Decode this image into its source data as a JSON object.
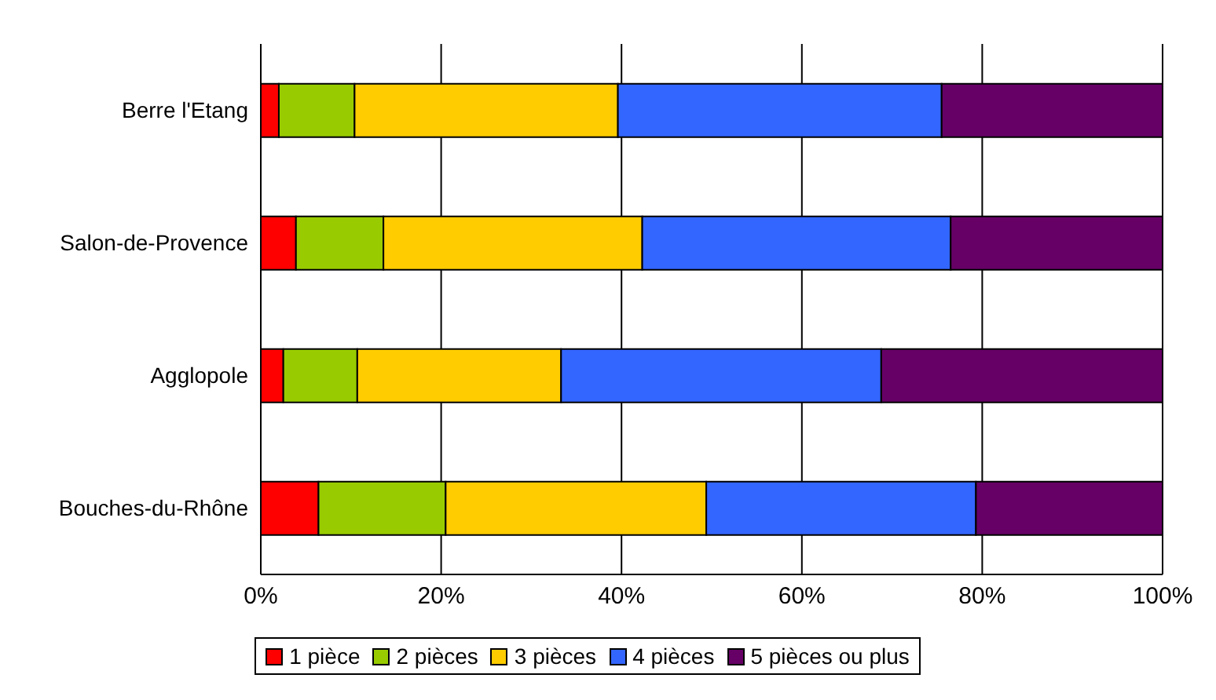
{
  "chart_data": {
    "type": "bar",
    "orientation": "horizontal",
    "stacked": true,
    "categories": [
      "Berre l'Etang",
      "Salon-de-Provence",
      "Agglopole",
      "Bouches-du-Rhône"
    ],
    "series": [
      {
        "name": "1 pièce",
        "color": "#ff0000",
        "values": [
          2.0,
          3.9,
          2.5,
          6.4
        ]
      },
      {
        "name": "2 pièces",
        "color": "#99cc00",
        "values": [
          8.4,
          9.7,
          8.2,
          14.1
        ]
      },
      {
        "name": "3 pièces",
        "color": "#ffcc00",
        "values": [
          29.2,
          28.7,
          22.6,
          28.9
        ]
      },
      {
        "name": "4 pièces",
        "color": "#3366ff",
        "values": [
          35.9,
          34.2,
          35.5,
          29.9
        ]
      },
      {
        "name": "5 pièces ou plus",
        "color": "#660066",
        "values": [
          24.5,
          23.5,
          31.2,
          20.7
        ]
      }
    ],
    "xlim": [
      0,
      100
    ],
    "xticks": [
      {
        "value": 0,
        "label": "0%"
      },
      {
        "value": 20,
        "label": "20%"
      },
      {
        "value": 40,
        "label": "40%"
      },
      {
        "value": 60,
        "label": "60%"
      },
      {
        "value": 80,
        "label": "80%"
      },
      {
        "value": 100,
        "label": "100%"
      }
    ],
    "grid": "x",
    "legend": "bottom"
  }
}
